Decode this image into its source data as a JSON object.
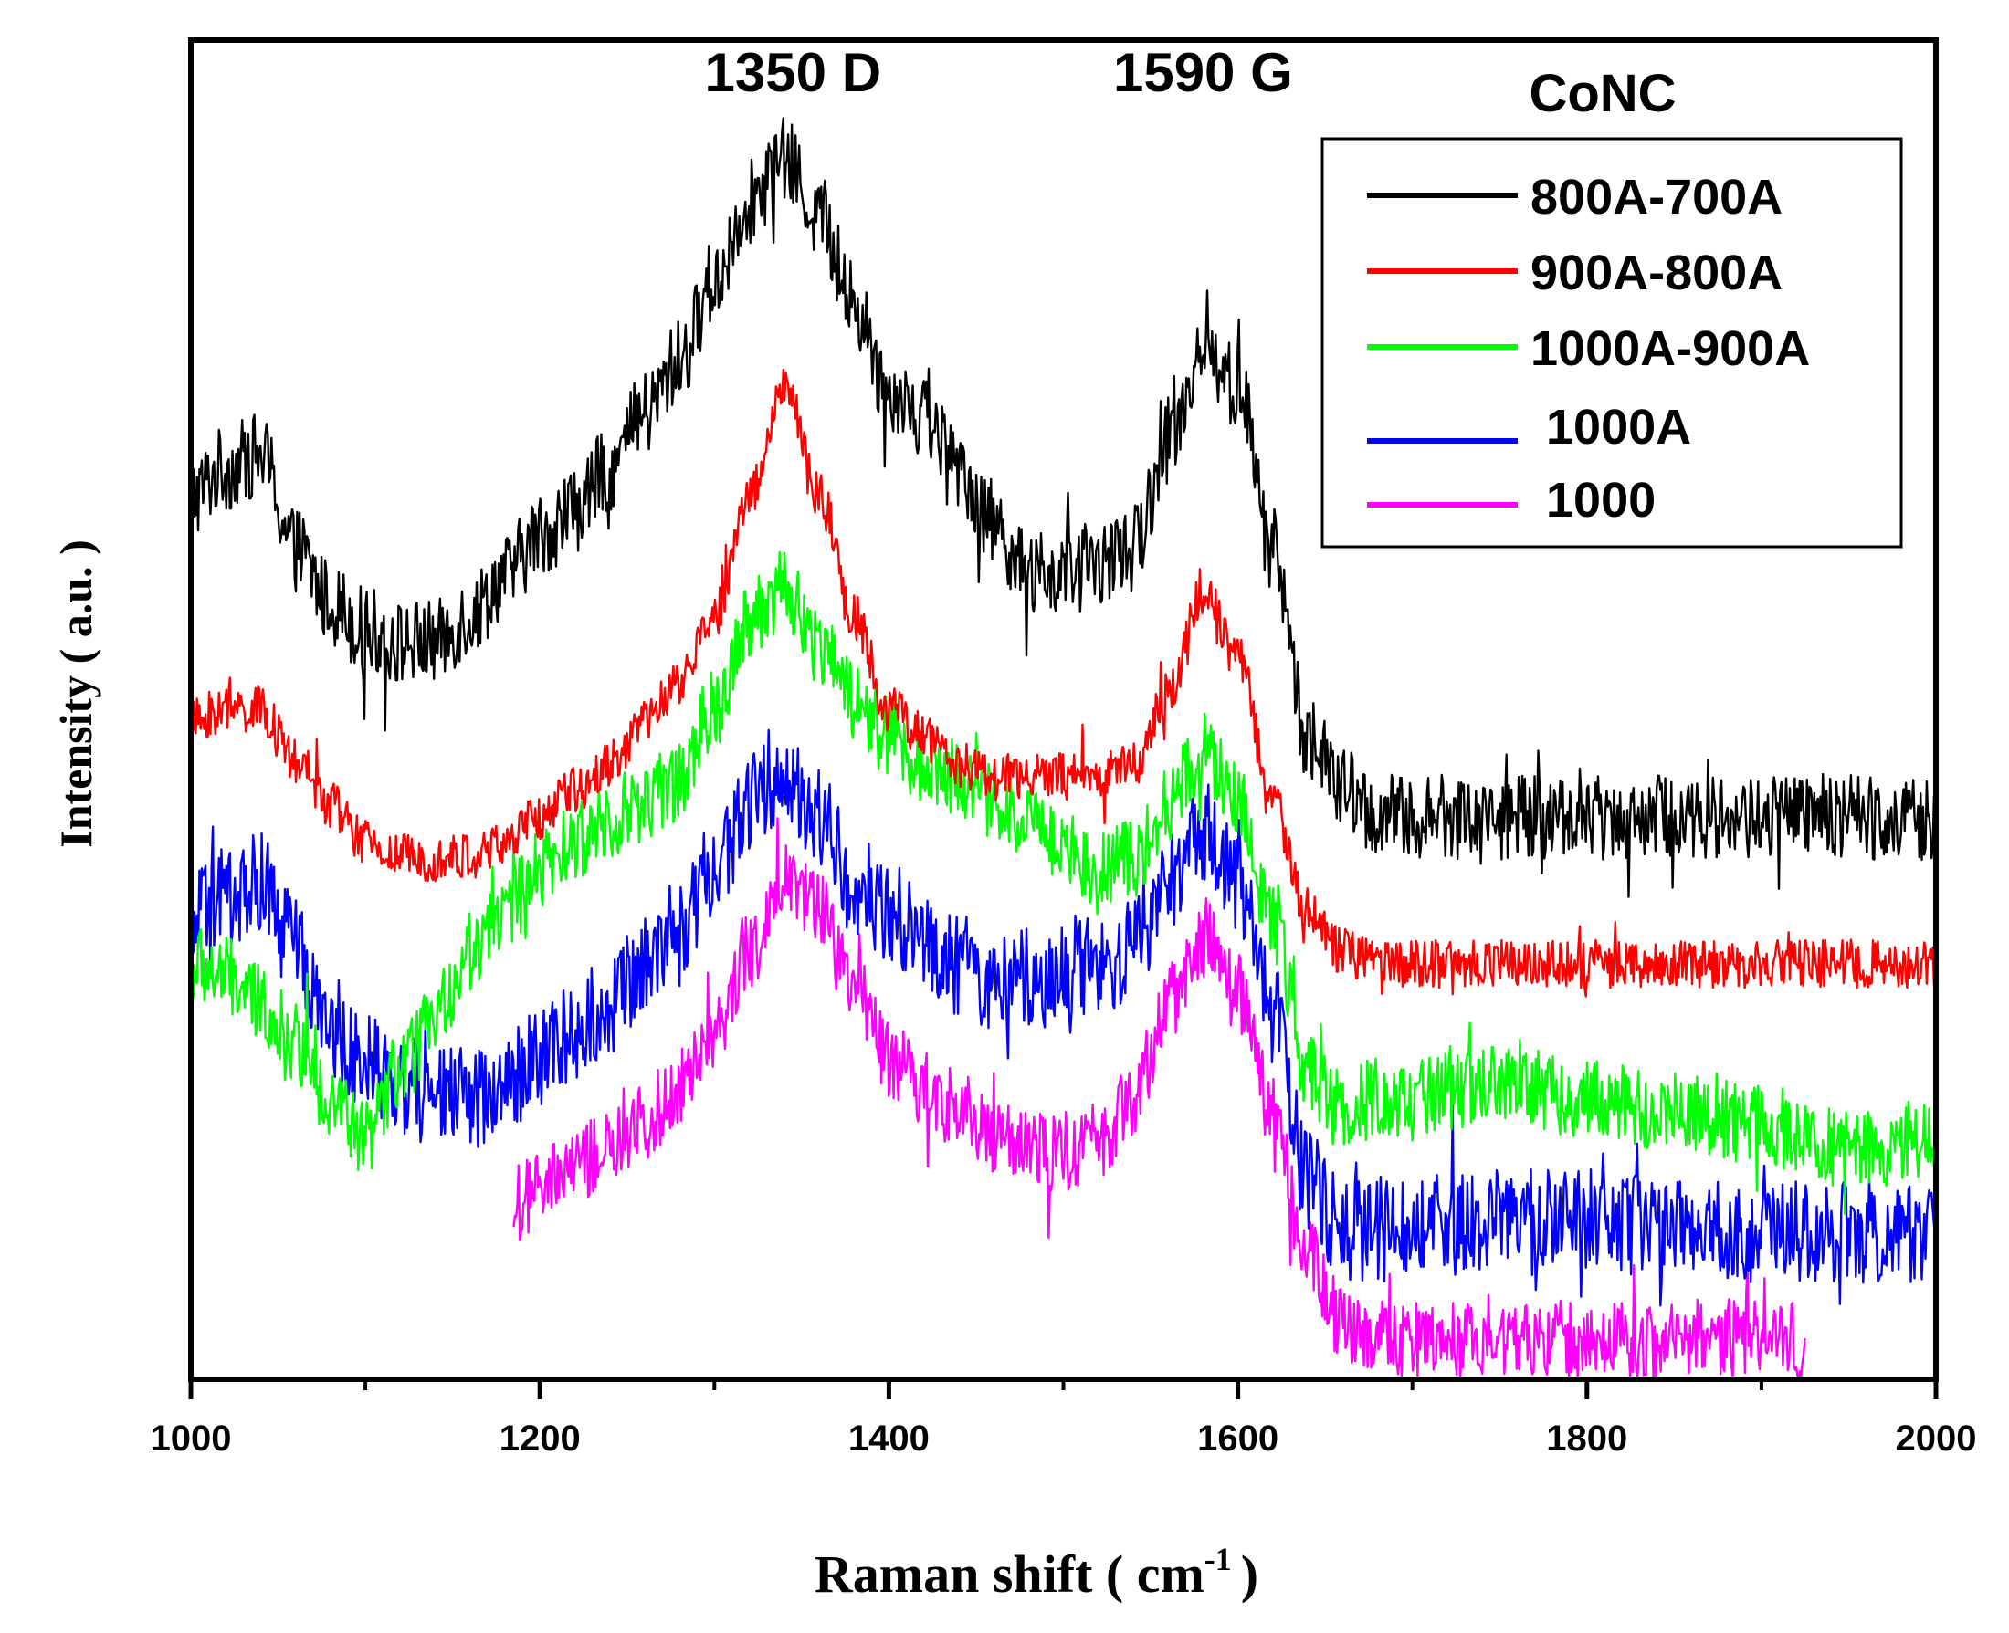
{
  "chart_data": {
    "type": "line",
    "title": "",
    "xlabel": "Raman shift ( cm",
    "xlabel_superscript": "-1",
    "xlabel_close": ")",
    "ylabel": "Intensity ( a.u. )",
    "xlim": [
      1000,
      2000
    ],
    "ylim": [
      0,
      100
    ],
    "y_ticks_shown": false,
    "grid": false,
    "x_ticks": [
      "1000",
      "1200",
      "1400",
      "1600",
      "1800",
      "2000"
    ],
    "legend": {
      "title": "CoNC",
      "placement": "top-right"
    },
    "annotations": [
      {
        "text": "1350 D",
        "x": 1345
      },
      {
        "text": "1590 G",
        "x": 1580
      }
    ],
    "series": [
      {
        "name": "800A-700A",
        "color": "#000000",
        "noise": 3.2,
        "x": [
          1000,
          1020,
          1040,
          1060,
          1080,
          1100,
          1120,
          1140,
          1160,
          1180,
          1200,
          1220,
          1240,
          1260,
          1280,
          1300,
          1320,
          1340,
          1360,
          1380,
          1400,
          1420,
          1440,
          1460,
          1480,
          1500,
          1520,
          1540,
          1560,
          1580,
          1600,
          1620,
          1640,
          1660,
          1680,
          1700,
          1750,
          1800,
          1850,
          1900,
          1950,
          2000
        ],
        "y": [
          66,
          68,
          69,
          62,
          58,
          56,
          55,
          55,
          57,
          60,
          63,
          65,
          68,
          72,
          76,
          82,
          88,
          91,
          87,
          80,
          74,
          72,
          68,
          64,
          60,
          60,
          61,
          62,
          70,
          77,
          74,
          62,
          48,
          44,
          42,
          42,
          42,
          42,
          42,
          42,
          42,
          42
        ]
      },
      {
        "name": "900A-800A",
        "color": "#ff0000",
        "noise": 1.8,
        "x": [
          1000,
          1020,
          1040,
          1060,
          1080,
          1100,
          1120,
          1140,
          1160,
          1180,
          1200,
          1220,
          1240,
          1260,
          1280,
          1300,
          1320,
          1340,
          1360,
          1380,
          1400,
          1420,
          1440,
          1460,
          1480,
          1500,
          1520,
          1540,
          1560,
          1580,
          1600,
          1620,
          1640,
          1660,
          1680,
          1700,
          1750,
          1800,
          1850,
          1900,
          1950,
          2000
        ],
        "y": [
          49,
          50,
          50,
          46,
          43,
          40,
          39,
          39,
          39,
          40,
          42,
          44,
          46,
          49,
          52,
          57,
          66,
          74,
          66,
          57,
          50,
          48,
          46,
          45,
          45,
          45,
          45,
          46,
          51,
          59,
          54,
          43,
          35,
          32,
          31,
          31,
          31,
          31,
          31,
          31,
          31,
          31
        ]
      },
      {
        "name": "1000A-900A",
        "color": "#00ff00",
        "noise": 3.0,
        "x": [
          1000,
          1020,
          1040,
          1060,
          1080,
          1100,
          1120,
          1140,
          1160,
          1180,
          1200,
          1220,
          1240,
          1260,
          1280,
          1300,
          1320,
          1340,
          1360,
          1380,
          1400,
          1420,
          1440,
          1460,
          1480,
          1500,
          1520,
          1540,
          1560,
          1580,
          1600,
          1620,
          1640,
          1660,
          1680,
          1700,
          1750,
          1800,
          1850,
          1900,
          1950,
          2000
        ],
        "y": [
          31,
          30,
          28,
          25,
          21,
          18,
          23,
          27,
          32,
          35,
          38,
          40,
          42,
          43,
          45,
          50,
          57,
          59,
          55,
          51,
          48,
          46,
          45,
          43,
          42,
          40,
          38,
          39,
          43,
          47,
          43,
          34,
          23,
          20,
          21,
          21,
          22,
          21,
          20,
          19,
          17,
          18
        ]
      },
      {
        "name": "1000A",
        "color": "#0000ff",
        "noise": 3.8,
        "x": [
          1000,
          1020,
          1040,
          1060,
          1080,
          1100,
          1120,
          1140,
          1160,
          1180,
          1200,
          1220,
          1240,
          1260,
          1280,
          1300,
          1320,
          1340,
          1360,
          1380,
          1400,
          1420,
          1440,
          1460,
          1480,
          1500,
          1520,
          1540,
          1560,
          1580,
          1600,
          1620,
          1640,
          1660,
          1680,
          1700,
          1750,
          1800,
          1850,
          1900,
          1950,
          2000
        ],
        "y": [
          34,
          36,
          37,
          32,
          26,
          24,
          22,
          21,
          21,
          22,
          24,
          26,
          28,
          31,
          34,
          38,
          43,
          45,
          42,
          37,
          35,
          33,
          31,
          29,
          30,
          30,
          31,
          32,
          37,
          41,
          37,
          27,
          15,
          11,
          11,
          11,
          12,
          12,
          11,
          11,
          11,
          11
        ]
      },
      {
        "name": "1000",
        "color": "#ff00ff",
        "noise": 3.0,
        "x": [
          1185,
          1200,
          1220,
          1240,
          1260,
          1280,
          1300,
          1320,
          1340,
          1360,
          1380,
          1400,
          1420,
          1440,
          1460,
          1480,
          1500,
          1520,
          1540,
          1560,
          1580,
          1600,
          1620,
          1640,
          1660,
          1680,
          1700,
          1750,
          1800,
          1850,
          1900,
          1925
        ],
        "y": [
          13,
          14,
          16,
          17,
          19,
          22,
          26,
          32,
          38,
          35,
          29,
          24,
          22,
          20,
          18,
          17,
          17,
          18,
          21,
          28,
          33,
          29,
          20,
          9,
          4,
          3,
          3,
          3,
          3,
          3,
          3,
          3
        ]
      }
    ]
  }
}
